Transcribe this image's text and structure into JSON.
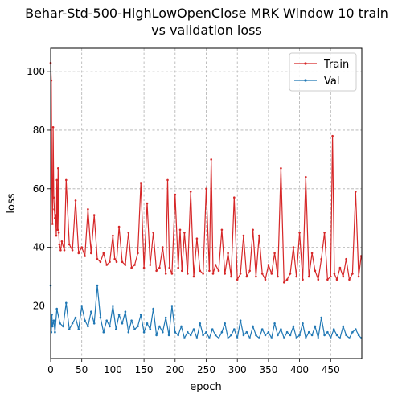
{
  "chart_data": {
    "type": "line",
    "title_lines": [
      "Behar-Std-500-HighLowOpenClose MRK Window 10 train",
      "vs validation loss"
    ],
    "xlabel": "epoch",
    "ylabel": "loss",
    "xlim": [
      0,
      500
    ],
    "ylim": [
      2,
      108
    ],
    "xticks": [
      0,
      50,
      100,
      150,
      200,
      250,
      300,
      350,
      400,
      450
    ],
    "yticks": [
      20,
      40,
      60,
      80,
      100
    ],
    "grid": true,
    "legend": "top-right",
    "series": [
      {
        "name": "Train",
        "color": "#d62728",
        "x": [
          0,
          1,
          2,
          3,
          4,
          5,
          6,
          7,
          8,
          9,
          10,
          11,
          12,
          13,
          14,
          16,
          18,
          22,
          25,
          30,
          35,
          40,
          45,
          50,
          55,
          60,
          65,
          70,
          75,
          80,
          85,
          90,
          95,
          100,
          103,
          106,
          110,
          115,
          120,
          125,
          130,
          135,
          140,
          145,
          150,
          155,
          160,
          165,
          170,
          175,
          180,
          185,
          188,
          191,
          195,
          200,
          205,
          208,
          211,
          215,
          220,
          225,
          230,
          235,
          240,
          245,
          250,
          255,
          258,
          261,
          265,
          270,
          275,
          280,
          285,
          290,
          295,
          300,
          305,
          310,
          315,
          320,
          325,
          330,
          335,
          340,
          345,
          350,
          355,
          360,
          365,
          370,
          375,
          380,
          385,
          390,
          395,
          400,
          405,
          410,
          415,
          420,
          425,
          430,
          435,
          440,
          445,
          450,
          453,
          456,
          460,
          465,
          470,
          475,
          480,
          485,
          490,
          495,
          499
        ],
        "values": [
          103,
          97,
          62,
          48,
          81,
          57,
          53,
          50,
          51,
          44,
          63,
          46,
          67,
          45,
          41,
          39,
          42,
          39,
          63,
          41,
          39,
          56,
          38,
          40,
          37,
          53,
          38,
          51,
          36,
          35,
          38,
          34,
          35,
          44,
          36,
          35,
          47,
          35,
          34,
          45,
          33,
          34,
          38,
          62,
          33,
          55,
          34,
          45,
          32,
          33,
          40,
          31,
          63,
          33,
          31,
          58,
          33,
          46,
          32,
          45,
          31,
          59,
          30,
          43,
          32,
          31,
          60,
          32,
          70,
          31,
          34,
          32,
          46,
          31,
          38,
          30,
          57,
          29,
          31,
          44,
          30,
          32,
          46,
          30,
          44,
          31,
          29,
          34,
          31,
          38,
          30,
          67,
          28,
          29,
          31,
          40,
          30,
          45,
          29,
          64,
          30,
          38,
          32,
          29,
          36,
          45,
          29,
          30,
          78,
          31,
          29,
          33,
          30,
          36,
          29,
          31,
          59,
          30,
          37
        ]
      },
      {
        "name": "Val",
        "color": "#1f77b4",
        "x": [
          0,
          1,
          2,
          3,
          5,
          7,
          10,
          15,
          20,
          25,
          30,
          35,
          40,
          45,
          50,
          55,
          60,
          65,
          70,
          75,
          80,
          85,
          90,
          95,
          100,
          105,
          110,
          115,
          120,
          125,
          130,
          135,
          140,
          145,
          150,
          155,
          160,
          165,
          170,
          175,
          180,
          185,
          190,
          195,
          200,
          205,
          210,
          215,
          220,
          225,
          230,
          235,
          240,
          245,
          250,
          255,
          260,
          265,
          270,
          275,
          280,
          285,
          290,
          295,
          300,
          305,
          310,
          315,
          320,
          325,
          330,
          335,
          340,
          345,
          350,
          355,
          360,
          365,
          370,
          375,
          380,
          385,
          390,
          395,
          400,
          405,
          410,
          415,
          420,
          425,
          430,
          435,
          440,
          445,
          450,
          455,
          460,
          465,
          470,
          475,
          480,
          485,
          490,
          495,
          499
        ],
        "values": [
          27,
          11,
          17,
          13,
          15,
          11,
          19,
          14,
          13,
          21,
          12,
          14,
          16,
          12,
          20,
          15,
          13,
          18,
          14,
          27,
          16,
          11,
          15,
          13,
          20,
          12,
          17,
          14,
          18,
          11,
          15,
          12,
          13,
          17,
          11,
          14,
          12,
          19,
          10,
          13,
          11,
          16,
          10,
          20,
          11,
          10,
          13,
          9,
          11,
          10,
          12,
          9,
          14,
          10,
          11,
          9,
          12,
          10,
          9,
          11,
          14,
          9,
          10,
          12,
          9,
          15,
          10,
          11,
          9,
          13,
          10,
          9,
          12,
          10,
          11,
          9,
          14,
          10,
          12,
          9,
          11,
          10,
          13,
          9,
          10,
          14,
          9,
          11,
          10,
          13,
          9,
          16,
          10,
          11,
          9,
          12,
          10,
          9,
          13,
          10,
          9,
          11,
          12,
          10,
          9
        ]
      }
    ]
  }
}
